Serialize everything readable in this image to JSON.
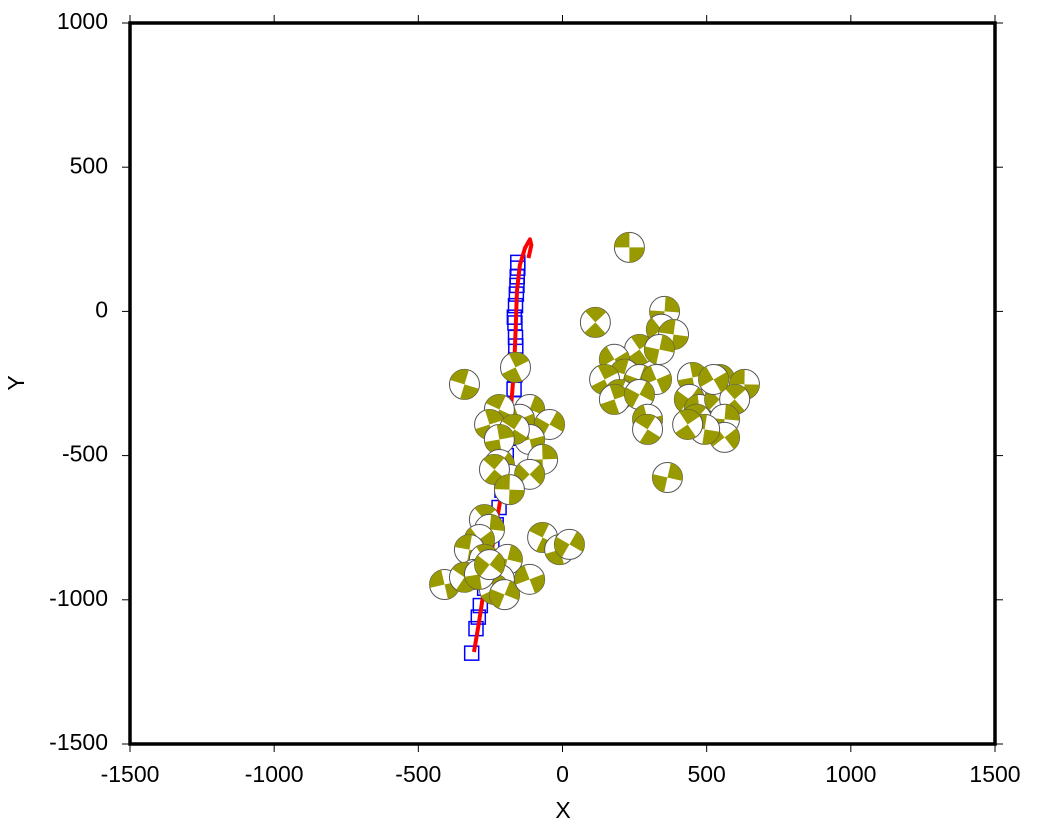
{
  "chart_data": {
    "type": "scatter",
    "xlabel": "X",
    "ylabel": "Y",
    "xlim": [
      -1500,
      1500
    ],
    "ylim": [
      -1500,
      1000
    ],
    "xticks": [
      -1500,
      -1000,
      -500,
      0,
      500,
      1000,
      1500
    ],
    "yticks": [
      -1500,
      -1000,
      -500,
      0,
      500,
      1000
    ],
    "series": [
      {
        "kind": "square",
        "color": "#0000ff",
        "x": [
          -315,
          -300,
          -292,
          -285,
          -270,
          -255,
          -245,
          -230,
          -220,
          -210,
          -200,
          -195,
          -185,
          -175,
          -170,
          -168,
          -165,
          -163,
          -162,
          -163,
          -165,
          -167,
          -163,
          -160,
          -158,
          -157,
          -155,
          -155
        ],
        "y": [
          -1185,
          -1100,
          -1060,
          -1020,
          -960,
          -880,
          -820,
          -740,
          -680,
          -620,
          -560,
          -500,
          -440,
          -380,
          -320,
          -270,
          -220,
          -170,
          -120,
          -90,
          -40,
          -20,
          20,
          60,
          90,
          120,
          150,
          170
        ]
      },
      {
        "kind": "line",
        "color": "#ff0000",
        "x": [
          -307,
          -290,
          -270,
          -240,
          -215,
          -195,
          -180,
          -168,
          -162,
          -158,
          -148,
          -130,
          -113,
          -108,
          -118
        ],
        "y": [
          -1181,
          -1080,
          -950,
          -800,
          -650,
          -500,
          -350,
          -200,
          -50,
          70,
          160,
          220,
          250,
          230,
          185
        ]
      },
      {
        "kind": "beachball",
        "color": "#999900",
        "x": [
          232,
          114,
          354,
          343,
          385,
          267,
          336,
          180,
          215,
          146,
          267,
          326,
          198,
          180,
          267,
          295,
          295,
          451,
          440,
          475,
          465,
          545,
          545,
          631,
          597,
          562,
          562,
          493,
          434,
          364,
          524,
          -340,
          -163,
          -114,
          -149,
          -219,
          -253,
          -45,
          -114,
          -167,
          -219,
          -219,
          -184,
          -236,
          -69,
          -114,
          -184,
          -271,
          -253,
          -288,
          -323,
          -271,
          -191,
          -306,
          -219,
          -236,
          -201,
          -114,
          -69,
          -10,
          24,
          -409,
          -340,
          -288,
          -253
        ],
        "y": [
          222,
          -38,
          0,
          -62,
          -80,
          -132,
          -132,
          -166,
          -218,
          -236,
          -236,
          -236,
          -288,
          -305,
          -288,
          -374,
          -409,
          -229,
          -305,
          -340,
          -374,
          -236,
          -305,
          -253,
          -305,
          -374,
          -437,
          -409,
          -392,
          -576,
          -236,
          -253,
          -194,
          -340,
          -374,
          -340,
          -392,
          -392,
          -444,
          -409,
          -444,
          -531,
          -583,
          -548,
          -513,
          -565,
          -618,
          -722,
          -756,
          -791,
          -826,
          -860,
          -860,
          -912,
          -929,
          -964,
          -982,
          -929,
          -784,
          -826,
          -808,
          -947,
          -922,
          -912,
          -878
        ]
      }
    ]
  }
}
